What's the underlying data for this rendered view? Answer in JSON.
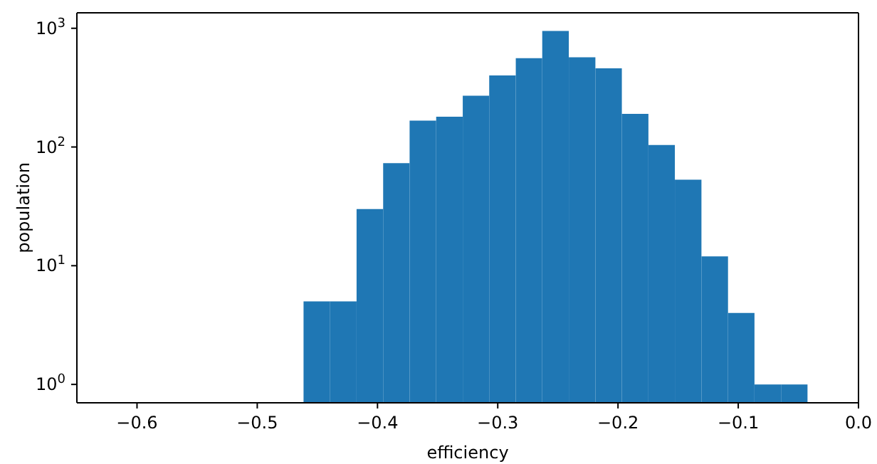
{
  "chart_data": {
    "type": "histogram",
    "xlabel": "efficiency",
    "ylabel": "population",
    "color": "#1f77b4",
    "bins": [
      -0.4615,
      -0.4394,
      -0.4174,
      -0.3953,
      -0.3733,
      -0.3512,
      -0.3291,
      -0.3071,
      -0.285,
      -0.263,
      -0.2409,
      -0.2188,
      -0.1968,
      -0.1747,
      -0.1527,
      -0.1306,
      -0.1085,
      -0.0865,
      -0.0644,
      -0.0424
    ],
    "values": [
      5,
      5,
      30,
      73,
      167,
      180,
      270,
      400,
      560,
      950,
      570,
      460,
      190,
      104,
      53,
      12,
      4,
      1,
      1
    ],
    "log": "y",
    "xlim": [
      -0.65,
      0.0
    ],
    "xticks": [
      {
        "value": -0.6,
        "label": "−0.6"
      },
      {
        "value": -0.5,
        "label": "−0.5"
      },
      {
        "value": -0.4,
        "label": "−0.4"
      },
      {
        "value": -0.3,
        "label": "−0.3"
      },
      {
        "value": -0.2,
        "label": "−0.2"
      },
      {
        "value": -0.1,
        "label": "−0.1"
      },
      {
        "value": 0.0,
        "label": "0.0"
      }
    ],
    "ylim": [
      0.7,
      1350
    ],
    "yticks": [
      {
        "value": 1,
        "label": "10$^{0}$"
      },
      {
        "value": 10,
        "label": "10$^{1}$"
      },
      {
        "value": 100,
        "label": "10$^{2}$"
      },
      {
        "value": 1000,
        "label": "10$^{3}$"
      }
    ],
    "grid": false
  }
}
